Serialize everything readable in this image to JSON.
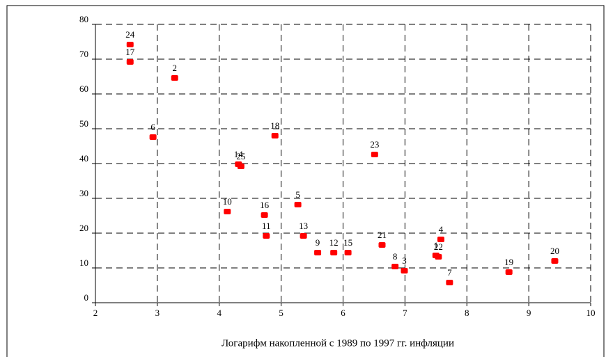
{
  "chart_data": {
    "type": "scatter",
    "xlabel": "Логарифм накопленной с 1989 по 1997 гг. инфляции",
    "x": [
      7.5,
      3.28,
      6.99,
      7.58,
      5.27,
      2.93,
      7.72,
      6.84,
      5.59,
      4.13,
      4.76,
      5.85,
      5.36,
      4.31,
      6.08,
      4.73,
      2.56,
      4.9,
      8.68,
      9.42,
      6.63,
      7.54,
      6.51,
      2.56,
      4.35
    ],
    "values": [
      13.6,
      64.6,
      9.2,
      18.2,
      28.2,
      47.6,
      5.8,
      10.4,
      14.4,
      26.2,
      19.2,
      14.4,
      19.2,
      39.8,
      14.4,
      25.2,
      69.2,
      48,
      8.8,
      12,
      16.6,
      13.2,
      42.6,
      74.2,
      39.2
    ],
    "point_labels": [
      1,
      2,
      3,
      4,
      5,
      6,
      7,
      8,
      9,
      10,
      11,
      12,
      13,
      14,
      15,
      16,
      17,
      18,
      19,
      20,
      21,
      22,
      23,
      24,
      25
    ],
    "color": "#ff0000",
    "xlim": [
      2,
      10
    ],
    "xticks": [
      2,
      3,
      4,
      5,
      6,
      7,
      8,
      9,
      10
    ],
    "ylim": [
      0,
      80
    ],
    "yticks": [
      0,
      10,
      20,
      30,
      40,
      50,
      60,
      70,
      80
    ],
    "grid": true
  }
}
